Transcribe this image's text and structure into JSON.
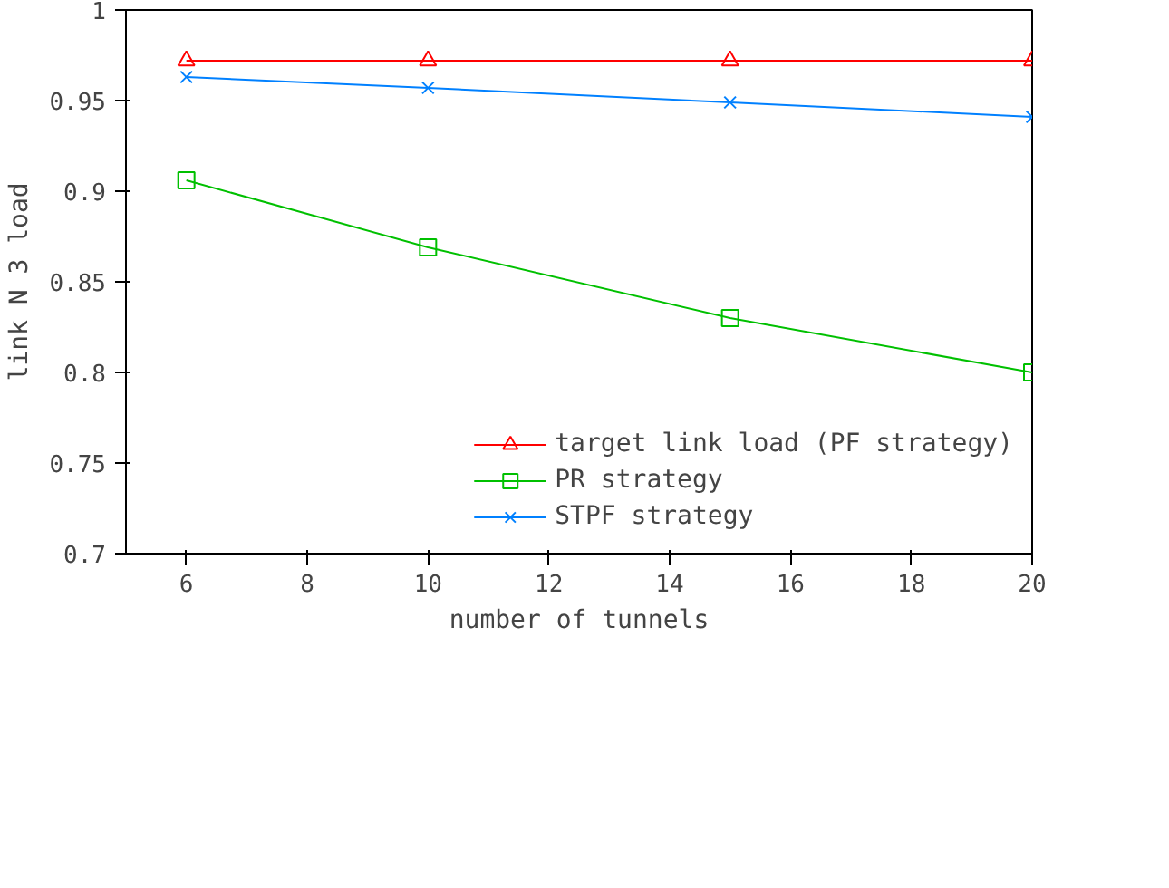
{
  "chart_data": {
    "type": "line",
    "xlabel": "number of tunnels",
    "ylabel": "link N 3 load",
    "x": [
      6,
      10,
      15,
      20
    ],
    "series": [
      {
        "name": "target link load (PF strategy)",
        "color": "#ff0000",
        "marker": "triangle",
        "values": [
          0.972,
          0.972,
          0.972,
          0.972
        ]
      },
      {
        "name": "PR strategy",
        "color": "#00c000",
        "marker": "square",
        "values": [
          0.906,
          0.869,
          0.83,
          0.8
        ]
      },
      {
        "name": "STPF strategy",
        "color": "#0080ff",
        "marker": "cross",
        "values": [
          0.963,
          0.957,
          0.949,
          0.941
        ]
      }
    ],
    "xlim": [
      5,
      20
    ],
    "xticks": [
      6,
      8,
      10,
      12,
      14,
      16,
      18,
      20
    ],
    "ylim": [
      0.7,
      1
    ],
    "yticks": [
      {
        "value": 0.7,
        "label": "0.7"
      },
      {
        "value": 0.75,
        "label": "0.75"
      },
      {
        "value": 0.8,
        "label": "0.8"
      },
      {
        "value": 0.85,
        "label": "0.85"
      },
      {
        "value": 0.9,
        "label": "0.9"
      },
      {
        "value": 0.95,
        "label": "0.95"
      },
      {
        "value": 1,
        "label": "1"
      }
    ],
    "grid": false,
    "legend": "bottom right",
    "line_style": "solid"
  }
}
